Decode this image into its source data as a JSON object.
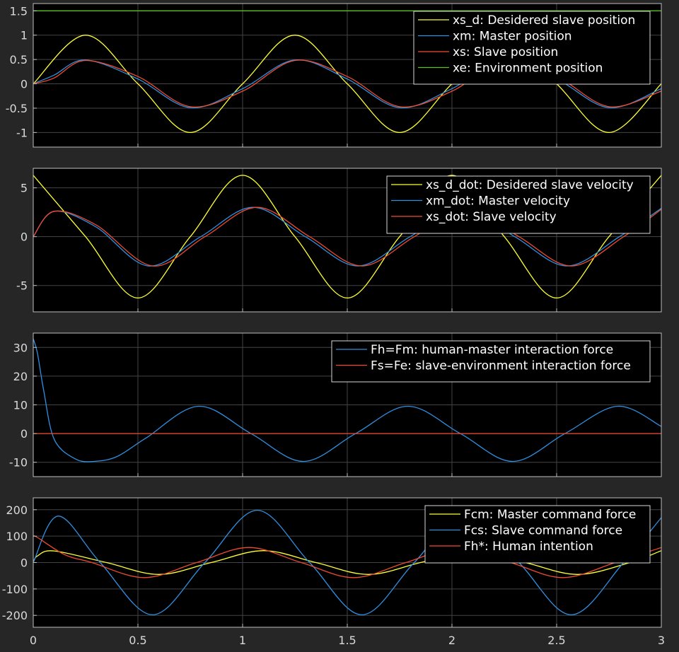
{
  "figure_background": "#262626",
  "axes_background": "#000000",
  "grid_color": "#444444",
  "tick_color": "#d9d9d9",
  "x_ticks": [
    0,
    0.5,
    1,
    1.5,
    2,
    2.5,
    3
  ],
  "x_tick_labels": [
    "0",
    "0.5",
    "1",
    "1.5",
    "2",
    "2.5",
    "3"
  ],
  "chart_data": [
    {
      "type": "line",
      "xlim": [
        0,
        3
      ],
      "ylim": [
        -1.3,
        1.65
      ],
      "yticks": [
        -1,
        -0.5,
        0,
        0.5,
        1,
        1.5
      ],
      "ytick_labels": [
        "-1",
        "-0.5",
        "0",
        "0.5",
        "1",
        "1.5"
      ],
      "grid": true,
      "legend_position": "top-right",
      "series": [
        {
          "name": "xs_d: Desidered slave position",
          "color": "#ffff33",
          "x": [
            0,
            0.25,
            0.5,
            0.75,
            1,
            1.25,
            1.5,
            1.75,
            2,
            2.25,
            2.5,
            2.75,
            3
          ],
          "y": [
            0,
            1,
            0,
            -1,
            0,
            1,
            0,
            -1,
            0,
            1,
            0,
            -1,
            0
          ]
        },
        {
          "name": "xm: Master position",
          "color": "#2f8fe0",
          "x": [
            0,
            0.1,
            0.25,
            0.5,
            0.75,
            1,
            1.25,
            1.5,
            1.75,
            2,
            2.25,
            2.5,
            2.75,
            3
          ],
          "y": [
            0,
            0.18,
            0.49,
            0.1,
            -0.49,
            -0.1,
            0.49,
            0.1,
            -0.49,
            -0.1,
            0.49,
            0.1,
            -0.49,
            -0.1
          ]
        },
        {
          "name": "xs: Slave position",
          "color": "#f04b30",
          "x": [
            0,
            0.1,
            0.25,
            0.5,
            0.75,
            1,
            1.25,
            1.5,
            1.75,
            2,
            2.25,
            2.5,
            2.75,
            3
          ],
          "y": [
            0,
            0.12,
            0.48,
            0.15,
            -0.47,
            -0.15,
            0.48,
            0.15,
            -0.47,
            -0.15,
            0.48,
            0.15,
            -0.47,
            -0.15
          ]
        },
        {
          "name": "xe: Environment position",
          "color": "#5cc21f",
          "x": [
            0,
            3
          ],
          "y": [
            1.5,
            1.5
          ]
        }
      ]
    },
    {
      "type": "line",
      "xlim": [
        0,
        3
      ],
      "ylim": [
        -7.7,
        7.0
      ],
      "yticks": [
        -5,
        0,
        5
      ],
      "ytick_labels": [
        "-5",
        "0",
        "5"
      ],
      "grid": true,
      "legend_position": "top-right",
      "series": [
        {
          "name": "xs_d_dot: Desidered slave velocity",
          "color": "#ffff33",
          "x": [
            0,
            0.25,
            0.5,
            0.75,
            1,
            1.25,
            1.5,
            1.75,
            2,
            2.25,
            2.5,
            2.75,
            3
          ],
          "y": [
            6.28,
            0,
            -6.28,
            0,
            6.28,
            0,
            -6.28,
            0,
            6.28,
            0,
            -6.28,
            0,
            6.28
          ]
        },
        {
          "name": "xm_dot: Master velocity",
          "color": "#2f8fe0",
          "x": [
            0,
            0.1,
            0.3,
            0.55,
            0.8,
            1.05,
            1.3,
            1.55,
            1.8,
            2.05,
            2.3,
            2.55,
            2.8,
            3
          ],
          "y": [
            0,
            2.6,
            1.0,
            -3.0,
            0,
            3.0,
            0,
            -3.0,
            0,
            3.0,
            0,
            -3.0,
            0,
            2.9
          ]
        },
        {
          "name": "xs_dot: Slave velocity",
          "color": "#f04b30",
          "x": [
            0,
            0.1,
            0.3,
            0.57,
            0.82,
            1.07,
            1.32,
            1.57,
            1.82,
            2.07,
            2.32,
            2.57,
            2.82,
            3
          ],
          "y": [
            0,
            2.6,
            1.2,
            -3.0,
            0,
            3.0,
            0,
            -3.0,
            0,
            3.0,
            0,
            -3.0,
            0,
            2.8
          ]
        }
      ]
    },
    {
      "type": "line",
      "xlim": [
        0,
        3
      ],
      "ylim": [
        -15,
        35
      ],
      "yticks": [
        -10,
        0,
        10,
        20,
        30
      ],
      "ytick_labels": [
        "-10",
        "0",
        "10",
        "20",
        "30"
      ],
      "grid": true,
      "legend_position": "top-right",
      "series": [
        {
          "name": "Fh=Fm: human-master interaction force",
          "color": "#2f8fe0",
          "x": [
            0,
            0.02,
            0.05,
            0.1,
            0.2,
            0.29,
            0.4,
            0.54,
            0.79,
            1.04,
            1.29,
            1.54,
            1.79,
            2.04,
            2.29,
            2.54,
            2.79,
            3
          ],
          "y": [
            33,
            28,
            15,
            -2,
            -8.8,
            -9.7,
            -8,
            -1.5,
            9.5,
            0,
            -9.7,
            0,
            9.5,
            0,
            -9.7,
            0,
            9.5,
            2.5
          ]
        },
        {
          "name": "Fs=Fe: slave-environment interaction force",
          "color": "#f04b30",
          "x": [
            0,
            3
          ],
          "y": [
            0,
            0
          ]
        }
      ]
    },
    {
      "type": "line",
      "xlim": [
        0,
        3
      ],
      "ylim": [
        -245,
        245
      ],
      "yticks": [
        -200,
        -100,
        0,
        100,
        200
      ],
      "ytick_labels": [
        "-200",
        "-100",
        "0",
        "100",
        "200"
      ],
      "grid": true,
      "legend_position": "top-right",
      "series": [
        {
          "name": "Fcm: Master command force",
          "color": "#ffff33",
          "x": [
            0,
            0.02,
            0.1,
            0.35,
            0.6,
            0.85,
            1.1,
            1.35,
            1.6,
            1.85,
            2.1,
            2.35,
            2.6,
            2.85,
            3
          ],
          "y": [
            0,
            25,
            44,
            0,
            -45,
            0,
            45,
            0,
            -45,
            0,
            45,
            0,
            -45,
            0,
            45
          ]
        },
        {
          "name": "Fcs: Slave command force",
          "color": "#2f8fe0",
          "x": [
            0,
            0.12,
            0.32,
            0.57,
            0.82,
            1.07,
            1.32,
            1.57,
            1.82,
            2.07,
            2.32,
            2.57,
            2.82,
            3
          ],
          "y": [
            0,
            176,
            0,
            -198,
            0,
            198,
            0,
            -198,
            0,
            198,
            0,
            -198,
            0,
            170
          ]
        },
        {
          "name": "Fh*: Human intention",
          "color": "#f04b30",
          "x": [
            0,
            0.02,
            0.15,
            0.28,
            0.53,
            0.78,
            1.03,
            1.28,
            1.53,
            1.78,
            2.03,
            2.28,
            2.53,
            2.78,
            3
          ],
          "y": [
            100,
            95,
            30,
            0,
            -57,
            0,
            57,
            0,
            -57,
            0,
            57,
            0,
            -57,
            0,
            57
          ]
        }
      ]
    }
  ]
}
